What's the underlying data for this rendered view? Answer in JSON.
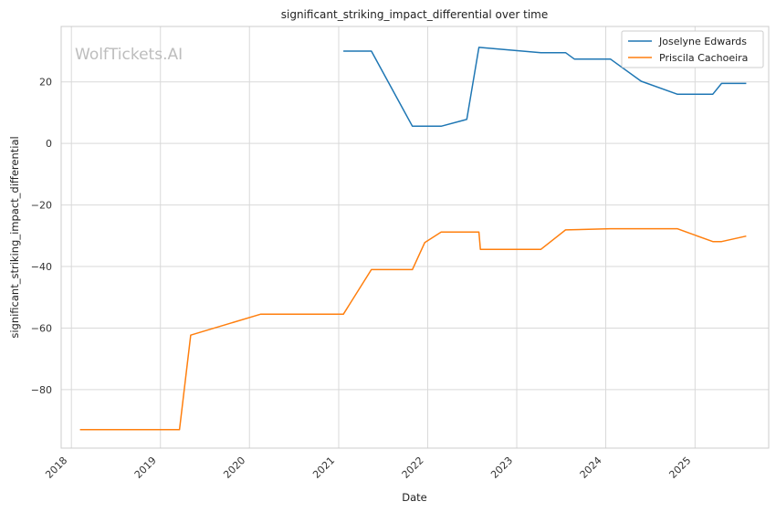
{
  "chart_data": {
    "type": "line",
    "title": "significant_striking_impact_differential over time",
    "xlabel": "Date",
    "ylabel": "significant_striking_impact_differential",
    "watermark": "WolfTickets.AI",
    "xlim": [
      "2017-11-20",
      "2025-10-30"
    ],
    "ylim": [
      -99,
      38
    ],
    "x_ticks": [
      "2018",
      "2019",
      "2020",
      "2021",
      "2022",
      "2023",
      "2024",
      "2025"
    ],
    "y_ticks": [
      -80,
      -60,
      -40,
      -20,
      0,
      20
    ],
    "y_tick_labels": [
      "−80",
      "−60",
      "−40",
      "−20",
      "0",
      "20"
    ],
    "grid": true,
    "legend_position": "top-right",
    "series": [
      {
        "name": "Joselyne Edwards",
        "color": "#1f77b4",
        "points": [
          [
            "2021-01-20",
            30
          ],
          [
            "2021-05-15",
            30
          ],
          [
            "2021-10-30",
            5.6
          ],
          [
            "2022-02-25",
            5.6
          ],
          [
            "2022-06-10",
            7.8
          ],
          [
            "2022-07-30",
            31.2
          ],
          [
            "2023-04-10",
            29.5
          ],
          [
            "2023-07-20",
            29.5
          ],
          [
            "2023-08-25",
            27.4
          ],
          [
            "2024-01-20",
            27.4
          ],
          [
            "2024-05-25",
            20.2
          ],
          [
            "2024-10-20",
            16
          ],
          [
            "2025-03-15",
            16
          ],
          [
            "2025-04-20",
            19.5
          ],
          [
            "2025-07-30",
            19.5
          ]
        ]
      },
      {
        "name": "Priscila Cachoeira",
        "color": "#ff7f0e",
        "points": [
          [
            "2018-02-05",
            -93
          ],
          [
            "2019-03-20",
            -93
          ],
          [
            "2019-05-05",
            -62.3
          ],
          [
            "2020-02-15",
            -55.5
          ],
          [
            "2021-01-20",
            -55.5
          ],
          [
            "2021-05-15",
            -41
          ],
          [
            "2021-10-30",
            -41
          ],
          [
            "2021-12-20",
            -32.2
          ],
          [
            "2022-02-25",
            -28.8
          ],
          [
            "2022-07-30",
            -28.8
          ],
          [
            "2022-08-05",
            -34.4
          ],
          [
            "2023-04-10",
            -34.4
          ],
          [
            "2023-07-20",
            -28.1
          ],
          [
            "2024-01-20",
            -27.7
          ],
          [
            "2024-10-20",
            -27.7
          ],
          [
            "2025-03-15",
            -31.9
          ],
          [
            "2025-04-20",
            -31.9
          ],
          [
            "2025-07-30",
            -30.1
          ]
        ]
      }
    ]
  }
}
